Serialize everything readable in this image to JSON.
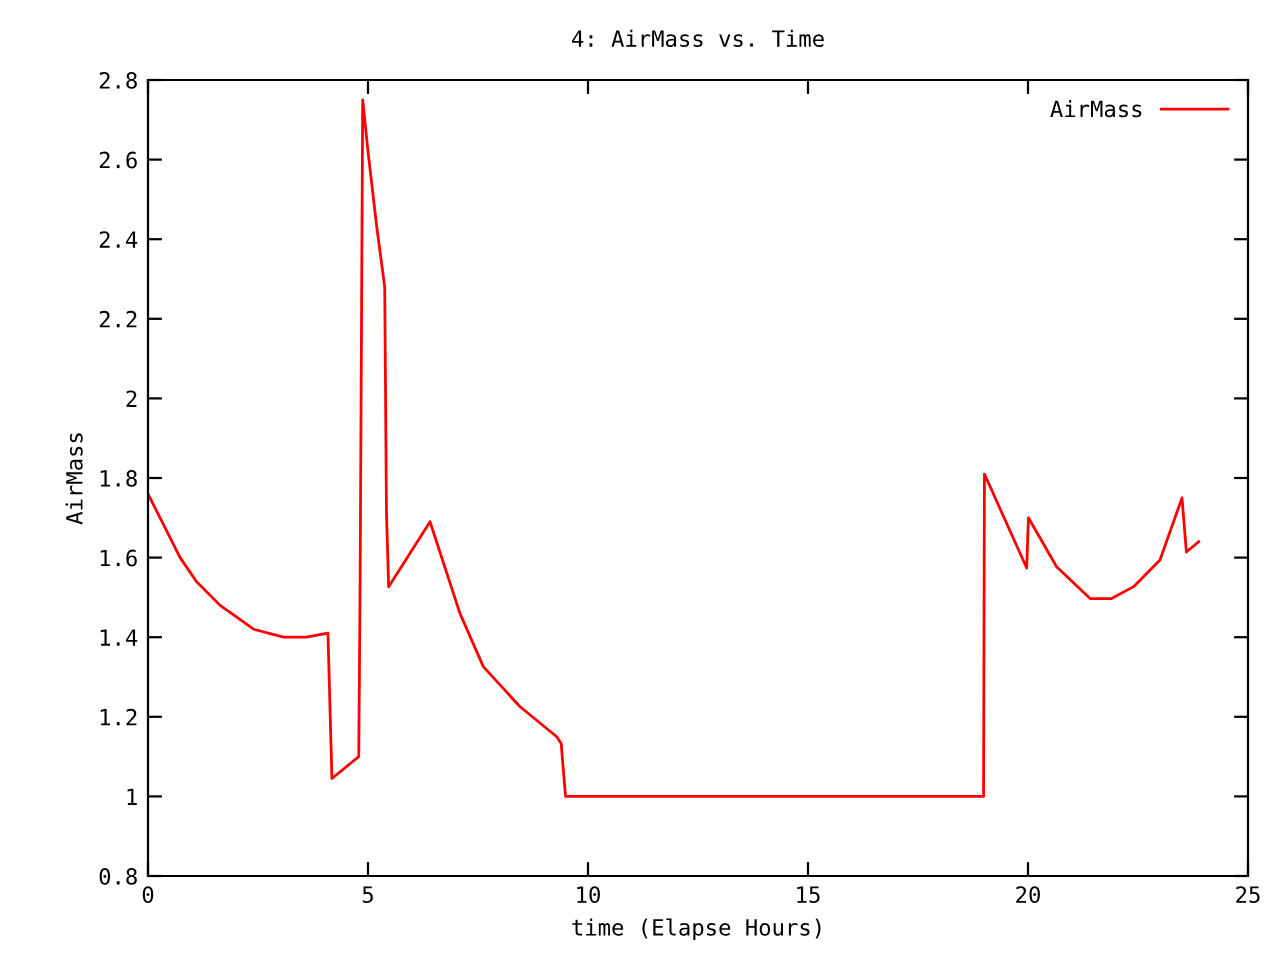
{
  "chart_data": {
    "type": "line",
    "title": "4: AirMass vs. Time",
    "xlabel": "time (Elapse Hours)",
    "ylabel": "AirMass",
    "xlim": [
      0,
      25
    ],
    "xticks": [
      0,
      5,
      10,
      15,
      20,
      25
    ],
    "ylim": [
      0.8,
      2.8
    ],
    "yticks": [
      0.8,
      1,
      1.2,
      1.4,
      1.6,
      1.8,
      2,
      2.2,
      2.4,
      2.6,
      2.8
    ],
    "grid": false,
    "legend": "top right",
    "marker": "none",
    "line_style": "solid",
    "series": [
      {
        "name": "AirMass",
        "color": "#ff0000",
        "x": [
          0,
          0.73,
          1.1,
          1.64,
          2.4,
          3.08,
          3.6,
          4.09,
          4.18,
          4.79,
          4.82,
          4.86,
          4.88,
          5.0,
          5.2,
          5.38,
          5.42,
          5.47,
          6.41,
          7.09,
          7.62,
          8.45,
          9.29,
          9.39,
          9.49,
          18.99,
          19.01,
          19.97,
          20.01,
          20.65,
          21.41,
          21.9,
          22.4,
          23.0,
          23.5,
          23.6,
          23.88
        ],
        "values": [
          1.76,
          1.6,
          1.54,
          1.48,
          1.42,
          1.4,
          1.4,
          1.41,
          1.045,
          1.1,
          1.52,
          2.35,
          2.75,
          2.62,
          2.43,
          2.28,
          1.71,
          1.527,
          1.69,
          1.46,
          1.326,
          1.226,
          1.15,
          1.133,
          1.0,
          1.0,
          1.81,
          1.574,
          1.7,
          1.577,
          1.497,
          1.497,
          1.527,
          1.594,
          1.75,
          1.614,
          1.64
        ]
      }
    ]
  }
}
